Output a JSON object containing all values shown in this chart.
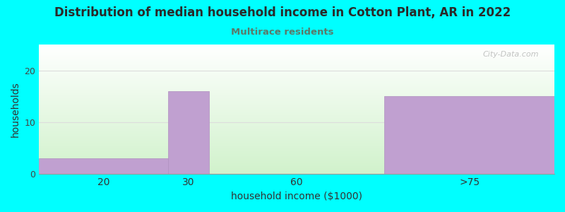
{
  "title": "Distribution of median household income in Cotton Plant, AR in 2022",
  "subtitle": "Multirace residents",
  "title_color": "#2a2a2a",
  "subtitle_color": "#5a7a6a",
  "background_color": "#00ffff",
  "bar_color": "#c0a0d0",
  "bar_edge_color": "#b090c0",
  "xlabel": "household income ($1000)",
  "ylabel": "households",
  "ylim": [
    0,
    25
  ],
  "yticks": [
    0,
    10,
    20
  ],
  "watermark": "City-Data.com",
  "figsize": [
    8.0,
    3.0
  ],
  "dpi": 100,
  "bin_lefts": [
    0,
    25,
    33,
    67
  ],
  "bin_rights": [
    25,
    33,
    67,
    100
  ],
  "bin_labels": [
    "20",
    "30",
    "60",
    ">75"
  ],
  "values": [
    3,
    16,
    0,
    15
  ],
  "xlim": [
    0,
    100
  ]
}
